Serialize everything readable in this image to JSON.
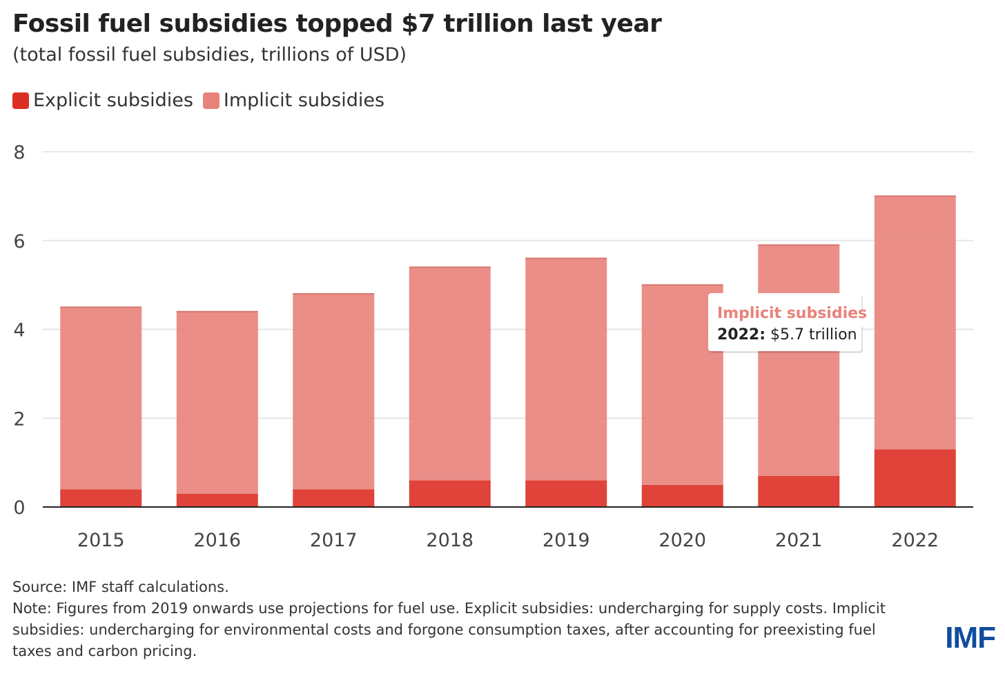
{
  "header": {
    "title": "Fossil fuel subsidies topped $7 trillion last year",
    "subtitle": "(total fossil fuel subsidies, trillions of USD)"
  },
  "legend": {
    "items": [
      {
        "label": "Explicit subsidies",
        "color": "#dc2f24"
      },
      {
        "label": "Implicit subsidies",
        "color": "#e9827b"
      }
    ]
  },
  "chart_data": {
    "type": "bar",
    "stacked": true,
    "categories": [
      "2015",
      "2016",
      "2017",
      "2018",
      "2019",
      "2020",
      "2021",
      "2022"
    ],
    "series": [
      {
        "name": "Explicit subsidies",
        "color": "#dc2f24",
        "values": [
          0.4,
          0.3,
          0.4,
          0.6,
          0.6,
          0.5,
          0.7,
          1.3
        ]
      },
      {
        "name": "Implicit subsidies",
        "color": "#e9827b",
        "values": [
          4.1,
          4.1,
          4.4,
          4.8,
          5.0,
          4.5,
          5.2,
          5.7
        ]
      }
    ],
    "ylim": [
      0,
      8
    ],
    "yticks": [
      0,
      2,
      4,
      6,
      8
    ],
    "grid": true,
    "legend_position": "top-left"
  },
  "tooltip": {
    "series": "Implicit subsidies",
    "year": "2022",
    "value": "$5.7 trillion"
  },
  "footer": {
    "source": "Source: IMF staff calculations.",
    "note": "Note: Figures from 2019 onwards use projections for fuel use. Explicit subsidies: undercharging for supply costs. Implicit subsidies: undercharging for environmental costs and forgone consumption taxes, after accounting for preexisting fuel taxes and carbon pricing.",
    "logo": "IMF"
  }
}
